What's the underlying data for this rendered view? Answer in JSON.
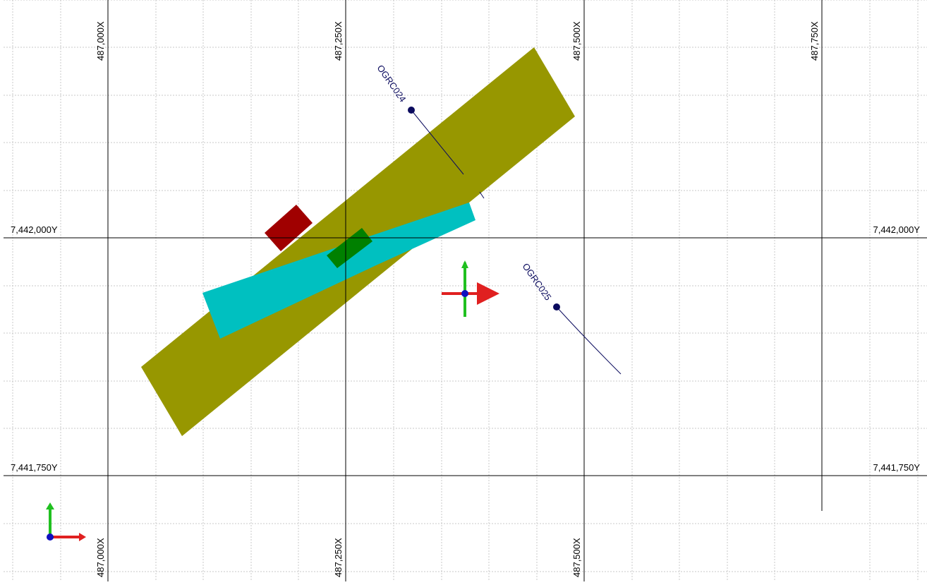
{
  "grid": {
    "x_labels": {
      "a": "487,000X",
      "b": "487,250X",
      "c": "487,500X",
      "d": "487,750X"
    },
    "y_labels": {
      "top": "7,442,000Y",
      "bottom": "7,441,750Y"
    }
  },
  "drillholes": {
    "h24": {
      "name": "OGRC024"
    },
    "h25": {
      "name": "OGRC025"
    }
  },
  "colors": {
    "background": "#ffffff",
    "major_grid": "#000000",
    "minor_grid": "#c8c8c8",
    "olive_body": "#979700",
    "cyan_body": "#00c0c0",
    "red_body": "#a00000",
    "green_body": "#008000",
    "drillhole": "#0b0b5e",
    "axis_x": "#e02020",
    "axis_y": "#20c020",
    "axis_z": "#1010c0"
  },
  "icons": {
    "manipulator": "move-gizmo-icon",
    "orientation": "orientation-axes-icon"
  }
}
